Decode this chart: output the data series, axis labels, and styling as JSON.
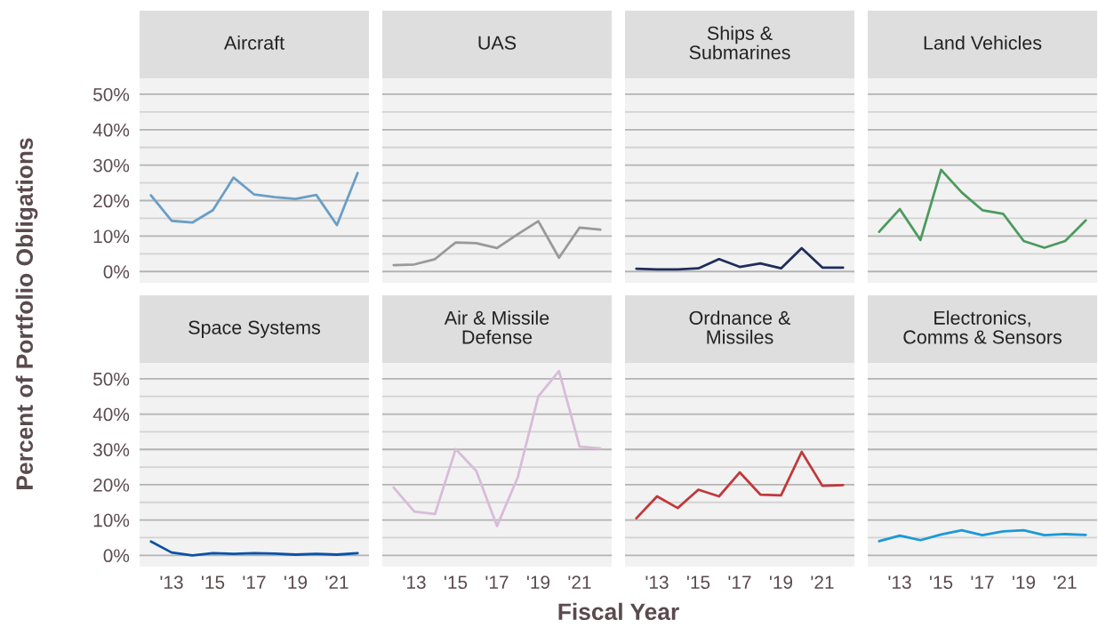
{
  "chart_data": [
    {
      "type": "line",
      "title": "Aircraft",
      "ylabel": "Percent of Portfolio Obligations",
      "x": [
        2012,
        2013,
        2014,
        2015,
        2016,
        2017,
        2018,
        2019,
        2020,
        2021,
        2022
      ],
      "series": [
        {
          "color": "#6a9ec6",
          "values": [
            21.5,
            14.3,
            13.8,
            17.3,
            26.5,
            21.7,
            21,
            20.5,
            21.6,
            13.1,
            27.8
          ]
        }
      ],
      "xlim": [
        2011.45,
        2022.55
      ],
      "ylim": [
        -3.2,
        54.5
      ],
      "yticks": [
        {
          "value": 0,
          "label": "0%"
        },
        {
          "value": 5,
          "label": null
        },
        {
          "value": 10,
          "label": "10%"
        },
        {
          "value": 15,
          "label": null
        },
        {
          "value": 20,
          "label": "20%"
        },
        {
          "value": 25,
          "label": null
        },
        {
          "value": 30,
          "label": "30%"
        },
        {
          "value": 35,
          "label": null
        },
        {
          "value": 40,
          "label": "40%"
        },
        {
          "value": 45,
          "label": null
        },
        {
          "value": 50,
          "label": "50%"
        }
      ],
      "grid": "y",
      "legend": false,
      "marker": "none",
      "line_style": "solid",
      "tick_labels": "y"
    },
    {
      "type": "line",
      "title": "UAS",
      "x": [
        2012,
        2013,
        2014,
        2015,
        2016,
        2017,
        2018,
        2019,
        2020,
        2021,
        2022
      ],
      "series": [
        {
          "color": "#999999",
          "values": [
            1.8,
            2,
            3.5,
            8.2,
            8,
            6.6,
            10.5,
            14.2,
            3.9,
            12.4,
            11.8
          ]
        }
      ],
      "xlim": [
        2011.45,
        2022.55
      ],
      "ylim": [
        -3.2,
        54.5
      ],
      "yticks": [
        0,
        {
          "value": 5,
          "label": null
        },
        10,
        {
          "value": 15,
          "label": null
        },
        20,
        {
          "value": 25,
          "label": null
        },
        30,
        {
          "value": 35,
          "label": null
        },
        40,
        {
          "value": 45,
          "label": null
        },
        50
      ],
      "grid": "y",
      "legend": false,
      "marker": "none",
      "line_style": "solid",
      "tick_labels": false
    },
    {
      "type": "line",
      "title": "Ships & Submarines",
      "x": [
        2012,
        2013,
        2014,
        2015,
        2016,
        2017,
        2018,
        2019,
        2020,
        2021,
        2022
      ],
      "series": [
        {
          "color": "#1f2d5c",
          "values": [
            0.8,
            0.6,
            0.6,
            0.9,
            3.5,
            1.3,
            2.3,
            0.9,
            6.6,
            1.1,
            1.1
          ]
        }
      ],
      "xlim": [
        2011.45,
        2022.55
      ],
      "ylim": [
        -3.2,
        54.5
      ],
      "yticks": [
        0,
        {
          "value": 5,
          "label": null
        },
        10,
        {
          "value": 15,
          "label": null
        },
        20,
        {
          "value": 25,
          "label": null
        },
        30,
        {
          "value": 35,
          "label": null
        },
        40,
        {
          "value": 45,
          "label": null
        },
        50
      ],
      "grid": "y",
      "legend": false,
      "marker": "none",
      "line_style": "solid",
      "tick_labels": false
    },
    {
      "type": "line",
      "title": "Land Vehicles",
      "x": [
        2012,
        2013,
        2014,
        2015,
        2016,
        2017,
        2018,
        2019,
        2020,
        2021,
        2022
      ],
      "series": [
        {
          "color": "#4c9a5e",
          "values": [
            11.2,
            17.6,
            8.9,
            28.7,
            22.3,
            17.3,
            16.3,
            8.6,
            6.7,
            8.6,
            14.4
          ]
        }
      ],
      "xlim": [
        2011.45,
        2022.55
      ],
      "ylim": [
        -3.2,
        54.5
      ],
      "yticks": [
        0,
        {
          "value": 5,
          "label": null
        },
        10,
        {
          "value": 15,
          "label": null
        },
        20,
        {
          "value": 25,
          "label": null
        },
        30,
        {
          "value": 35,
          "label": null
        },
        40,
        {
          "value": 45,
          "label": null
        },
        50
      ],
      "grid": "y",
      "legend": false,
      "marker": "none",
      "line_style": "solid",
      "tick_labels": false
    },
    {
      "type": "line",
      "title": "Space Systems",
      "x": [
        2012,
        2013,
        2014,
        2015,
        2016,
        2017,
        2018,
        2019,
        2020,
        2021,
        2022
      ],
      "series": [
        {
          "color": "#0a52a6",
          "values": [
            3.9,
            0.8,
            0,
            0.6,
            0.4,
            0.6,
            0.5,
            0.2,
            0.4,
            0.2,
            0.6
          ]
        }
      ],
      "xlim": [
        2011.45,
        2022.55
      ],
      "ylim": [
        -3.2,
        54.5
      ],
      "xticks": [
        {
          "value": 2013,
          "label": "'13"
        },
        {
          "value": 2015,
          "label": "'15"
        },
        {
          "value": 2017,
          "label": "'17"
        },
        {
          "value": 2019,
          "label": "'19"
        },
        {
          "value": 2021,
          "label": "'21"
        }
      ],
      "yticks": [
        {
          "value": 0,
          "label": "0%"
        },
        {
          "value": 5,
          "label": null
        },
        {
          "value": 10,
          "label": "10%"
        },
        {
          "value": 15,
          "label": null
        },
        {
          "value": 20,
          "label": "20%"
        },
        {
          "value": 25,
          "label": null
        },
        {
          "value": 30,
          "label": "30%"
        },
        {
          "value": 35,
          "label": null
        },
        {
          "value": 40,
          "label": "40%"
        },
        {
          "value": 45,
          "label": null
        },
        {
          "value": 50,
          "label": "50%"
        }
      ],
      "grid": "y",
      "legend": false,
      "marker": "none",
      "line_style": "solid"
    },
    {
      "type": "line",
      "title": "Air & Missile Defense",
      "x": [
        2012,
        2013,
        2014,
        2015,
        2016,
        2017,
        2018,
        2019,
        2020,
        2021,
        2022
      ],
      "series": [
        {
          "color": "#d8bcd8",
          "values": [
            19.2,
            12.4,
            11.7,
            30.1,
            23.9,
            8.3,
            22,
            45,
            52.2,
            30.8,
            30.3
          ]
        }
      ],
      "xlim": [
        2011.45,
        2022.55
      ],
      "ylim": [
        -3.2,
        54.5
      ],
      "xticks": [
        {
          "value": 2013,
          "label": "'13"
        },
        {
          "value": 2015,
          "label": "'15"
        },
        {
          "value": 2017,
          "label": "'17"
        },
        {
          "value": 2019,
          "label": "'19"
        },
        {
          "value": 2021,
          "label": "'21"
        }
      ],
      "yticks": [
        0,
        {
          "value": 5,
          "label": null
        },
        10,
        {
          "value": 15,
          "label": null
        },
        20,
        {
          "value": 25,
          "label": null
        },
        30,
        {
          "value": 35,
          "label": null
        },
        40,
        {
          "value": 45,
          "label": null
        },
        50
      ],
      "grid": "y",
      "legend": false,
      "marker": "none",
      "line_style": "solid",
      "tick_labels": "x"
    },
    {
      "type": "line",
      "title": "Ordnance & Missiles",
      "xlabel": "Fiscal Year",
      "x": [
        2012,
        2013,
        2014,
        2015,
        2016,
        2017,
        2018,
        2019,
        2020,
        2021,
        2022
      ],
      "series": [
        {
          "color": "#c0393b",
          "values": [
            10.5,
            16.7,
            13.4,
            18.6,
            16.7,
            23.5,
            17.2,
            17,
            29.3,
            19.7,
            19.9
          ]
        }
      ],
      "xlim": [
        2011.45,
        2022.55
      ],
      "ylim": [
        -3.2,
        54.5
      ],
      "xticks": [
        {
          "value": 2013,
          "label": "'13"
        },
        {
          "value": 2015,
          "label": "'15"
        },
        {
          "value": 2017,
          "label": "'17"
        },
        {
          "value": 2019,
          "label": "'19"
        },
        {
          "value": 2021,
          "label": "'21"
        }
      ],
      "yticks": [
        0,
        {
          "value": 5,
          "label": null
        },
        10,
        {
          "value": 15,
          "label": null
        },
        20,
        {
          "value": 25,
          "label": null
        },
        30,
        {
          "value": 35,
          "label": null
        },
        40,
        {
          "value": 45,
          "label": null
        },
        50
      ],
      "grid": "y",
      "legend": false,
      "marker": "none",
      "line_style": "solid",
      "tick_labels": "x"
    },
    {
      "type": "line",
      "title": "Electronics, Comms & Sensors",
      "x": [
        2012,
        2013,
        2014,
        2015,
        2016,
        2017,
        2018,
        2019,
        2020,
        2021,
        2022
      ],
      "series": [
        {
          "color": "#1a9ad6",
          "values": [
            4,
            5.6,
            4.3,
            5.9,
            7.1,
            5.7,
            6.8,
            7.1,
            5.7,
            6,
            5.8
          ]
        }
      ],
      "xlim": [
        2011.45,
        2022.55
      ],
      "ylim": [
        -3.2,
        54.5
      ],
      "xticks": [
        {
          "value": 2013,
          "label": "'13"
        },
        {
          "value": 2015,
          "label": "'15"
        },
        {
          "value": 2017,
          "label": "'17"
        },
        {
          "value": 2019,
          "label": "'19"
        },
        {
          "value": 2021,
          "label": "'21"
        }
      ],
      "yticks": [
        0,
        {
          "value": 5,
          "label": null
        },
        10,
        {
          "value": 15,
          "label": null
        },
        20,
        {
          "value": 25,
          "label": null
        },
        30,
        {
          "value": 35,
          "label": null
        },
        40,
        {
          "value": 45,
          "label": null
        },
        50
      ],
      "grid": "y",
      "legend": false,
      "marker": "none",
      "line_style": "solid",
      "tick_labels": "x"
    }
  ]
}
